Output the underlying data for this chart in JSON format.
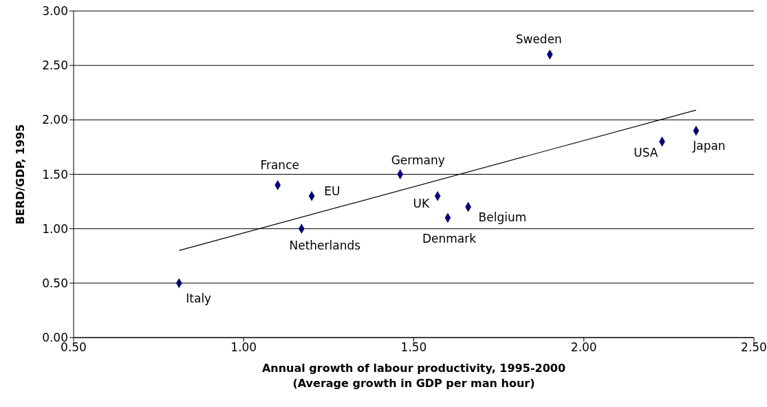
{
  "chart_data": {
    "type": "scatter",
    "xlabel": "Annual growth of labour productivity, 1995-2000\n(Average growth in GDP per man hour)",
    "ylabel": "BERD/GDP, 1995",
    "series": [
      {
        "type": "scatter",
        "color": "#000080",
        "marker": "diamond",
        "x": [
          0.81,
          1.1,
          1.2,
          1.17,
          1.46,
          1.57,
          1.6,
          1.66,
          1.9,
          2.23,
          2.33
        ],
        "values": [
          0.5,
          1.4,
          1.3,
          1.0,
          1.5,
          1.3,
          1.1,
          1.2,
          2.6,
          1.8,
          1.9
        ]
      },
      {
        "type": "line",
        "color": "#000000",
        "marker": "none",
        "x": [
          0.81,
          2.33
        ],
        "values": [
          0.8,
          2.09
        ]
      }
    ],
    "annotations": [
      {
        "text": "Italy",
        "x": 0.81,
        "y": 0.5
      },
      {
        "text": "France",
        "x": 1.1,
        "y": 1.4
      },
      {
        "text": "EU",
        "x": 1.2,
        "y": 1.3
      },
      {
        "text": "Netherlands",
        "x": 1.17,
        "y": 1.0
      },
      {
        "text": "Germany",
        "x": 1.46,
        "y": 1.5
      },
      {
        "text": "UK",
        "x": 1.57,
        "y": 1.3
      },
      {
        "text": "Denmark",
        "x": 1.6,
        "y": 1.1
      },
      {
        "text": "Belgium",
        "x": 1.66,
        "y": 1.2
      },
      {
        "text": "Sweden",
        "x": 1.9,
        "y": 2.6
      },
      {
        "text": "USA",
        "x": 2.23,
        "y": 1.8
      },
      {
        "text": "Japan",
        "x": 2.33,
        "y": 1.9
      }
    ],
    "xlim": [
      0.5,
      2.5
    ],
    "xticks": [
      {
        "value": 0.5,
        "label": "0.50"
      },
      {
        "value": 1,
        "label": "1.00"
      },
      {
        "value": 1.5,
        "label": "1.50"
      },
      {
        "value": 2,
        "label": "2.00"
      },
      {
        "value": 2.5,
        "label": "2.50"
      }
    ],
    "ylim": [
      0,
      3
    ],
    "yticks": [
      {
        "value": 0,
        "label": "0.00"
      },
      {
        "value": 0.5,
        "label": "0.50"
      },
      {
        "value": 1,
        "label": "1.00"
      },
      {
        "value": 1.5,
        "label": "1.50"
      },
      {
        "value": 2,
        "label": "2.00"
      },
      {
        "value": 2.5,
        "label": "2.50"
      },
      {
        "value": 3,
        "label": "3.00"
      }
    ],
    "grid": "y",
    "legend": false
  }
}
